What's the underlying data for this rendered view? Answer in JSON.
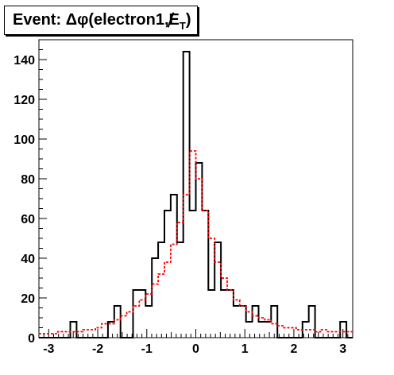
{
  "chart_data": {
    "type": "histogram",
    "title": {
      "prefix": "Event: ",
      "main": "Δφ(electron1,",
      "met_symbol": "E",
      "subscript": "T",
      "suffix": ")"
    },
    "xlim": [
      -3.2,
      3.2
    ],
    "ylim": [
      0,
      150
    ],
    "xticks": [
      "-3",
      "-2",
      "-1",
      "0",
      "1",
      "2",
      "3"
    ],
    "yticks": [
      "0",
      "20",
      "40",
      "60",
      "80",
      "100",
      "120",
      "140"
    ],
    "bin_edges": [
      -3.2,
      -3.072,
      -2.944,
      -2.816,
      -2.688,
      -2.56,
      -2.432,
      -2.304,
      -2.176,
      -2.048,
      -1.92,
      -1.792,
      -1.664,
      -1.536,
      -1.408,
      -1.28,
      -1.152,
      -1.024,
      -0.896,
      -0.768,
      -0.64,
      -0.512,
      -0.384,
      -0.256,
      -0.128,
      0.0,
      0.128,
      0.256,
      0.384,
      0.512,
      0.64,
      0.768,
      0.896,
      1.024,
      1.152,
      1.28,
      1.408,
      1.536,
      1.664,
      1.792,
      1.92,
      2.048,
      2.176,
      2.304,
      2.432,
      2.56,
      2.688,
      2.816,
      2.944,
      3.072,
      3.2
    ],
    "series": [
      {
        "style": "solid-black",
        "color": "#000000",
        "values": [
          0,
          0,
          0,
          0,
          0,
          8,
          0,
          0,
          0,
          0,
          0,
          8,
          16,
          0,
          0,
          24,
          24,
          16,
          40,
          48,
          64,
          72,
          48,
          144,
          64,
          88,
          64,
          24,
          48,
          24,
          24,
          16,
          16,
          8,
          16,
          8,
          8,
          16,
          0,
          0,
          0,
          0,
          8,
          16,
          0,
          0,
          0,
          0,
          8,
          0
        ]
      },
      {
        "style": "dashed-red",
        "color": "#ff0000",
        "values": [
          2,
          2,
          2,
          3,
          3,
          3,
          3,
          4,
          4,
          5,
          7,
          7,
          9,
          11,
          13,
          16,
          19,
          22,
          27,
          32,
          38,
          47,
          58,
          72,
          94,
          80,
          64,
          50,
          38,
          30,
          24,
          19,
          16,
          13,
          11,
          10,
          9,
          7,
          6,
          5,
          5,
          4,
          4,
          4,
          3,
          4,
          3,
          3,
          3,
          3
        ]
      }
    ]
  }
}
